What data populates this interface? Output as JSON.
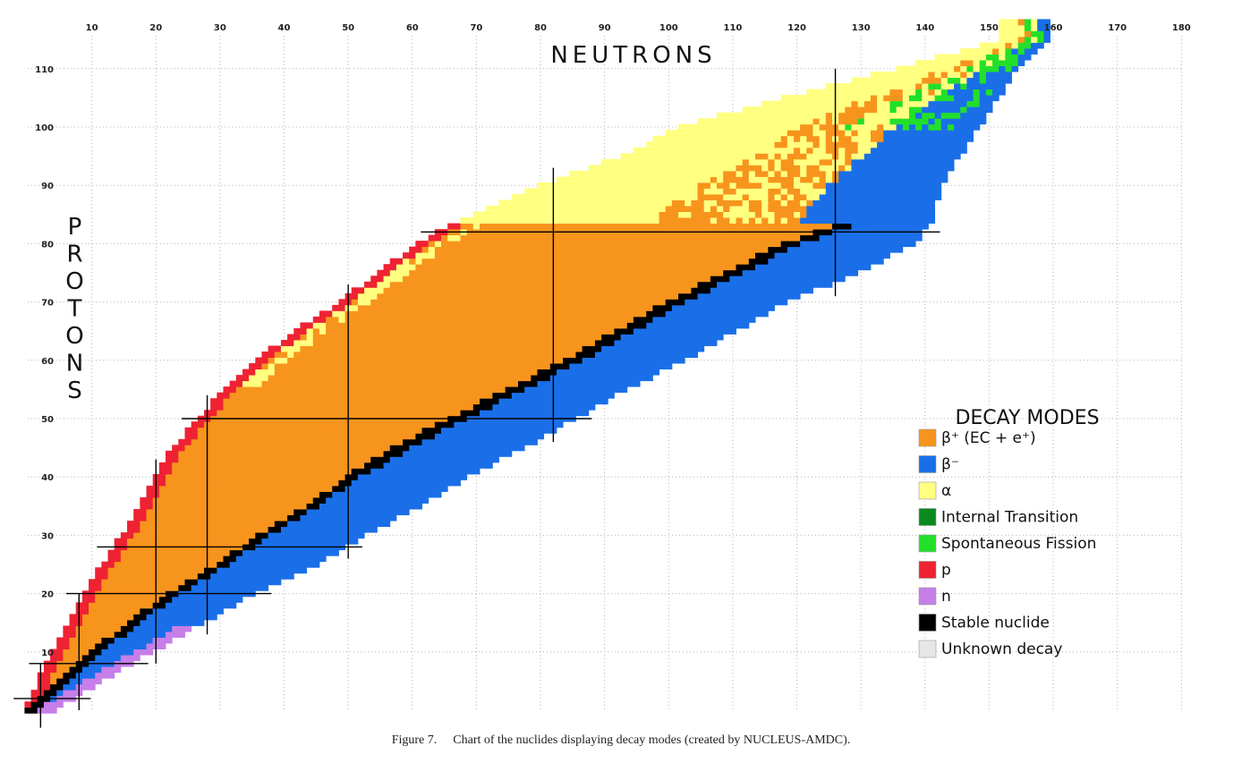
{
  "chart_data": {
    "type": "heatmap",
    "title": "",
    "xlabel": "NEUTRONS",
    "ylabel": "PROTONS",
    "xlim": [
      0,
      180
    ],
    "ylim": [
      0,
      115
    ],
    "x_ticks": [
      10,
      20,
      30,
      40,
      50,
      60,
      70,
      80,
      90,
      100,
      110,
      120,
      130,
      140,
      150,
      160,
      170,
      180
    ],
    "y_ticks": [
      10,
      20,
      30,
      40,
      50,
      60,
      70,
      80,
      90,
      100,
      110
    ],
    "grid": true,
    "x_axis_position": "top",
    "legend_position": "right",
    "legend_title": "DECAY MODES",
    "legend": [
      {
        "label": "β⁺ (EC + e⁺)",
        "color": "#f7941d"
      },
      {
        "label": "β⁻",
        "color": "#1a6fe8"
      },
      {
        "label": "α",
        "color": "#ffff80"
      },
      {
        "label": "Internal Transition",
        "color": "#0a8a1e"
      },
      {
        "label": "Spontaneous Fission",
        "color": "#22e02a"
      },
      {
        "label": "p",
        "color": "#ee2233"
      },
      {
        "label": "n",
        "color": "#c77ee8"
      },
      {
        "label": "Stable nuclide",
        "color": "#000000"
      },
      {
        "label": "Unknown decay",
        "color": "#e6e6e6"
      }
    ],
    "magic_numbers": [
      2,
      8,
      20,
      28,
      50,
      82,
      126
    ],
    "band_profile": {
      "z": [
        0,
        5,
        10,
        15,
        20,
        25,
        30,
        35,
        40,
        45,
        50,
        55,
        60,
        65,
        70,
        75,
        80,
        83,
        85,
        90,
        95,
        100,
        105,
        110,
        115
      ],
      "n_min": [
        0,
        2,
        4,
        7,
        9,
        12,
        15,
        18,
        20,
        23,
        27,
        31,
        36,
        42,
        49,
        55,
        61,
        66,
        70,
        80,
        93,
        102,
        118,
        136,
        152
      ],
      "n_max": [
        4,
        11,
        19,
        27,
        35,
        45,
        52,
        61,
        68,
        77,
        85,
        93,
        102,
        110,
        118,
        129,
        138,
        140,
        141,
        142,
        145,
        148,
        151,
        154,
        159
      ],
      "n_stable": [
        0,
        5,
        10,
        16,
        22,
        30,
        36,
        44,
        50,
        57,
        66,
        75,
        84,
        92,
        100,
        109,
        118,
        126
      ]
    }
  },
  "caption": {
    "figure_label": "Figure 7.",
    "text": "Chart of the nuclides displaying decay modes (created by NUCLEUS-AMDC)."
  }
}
